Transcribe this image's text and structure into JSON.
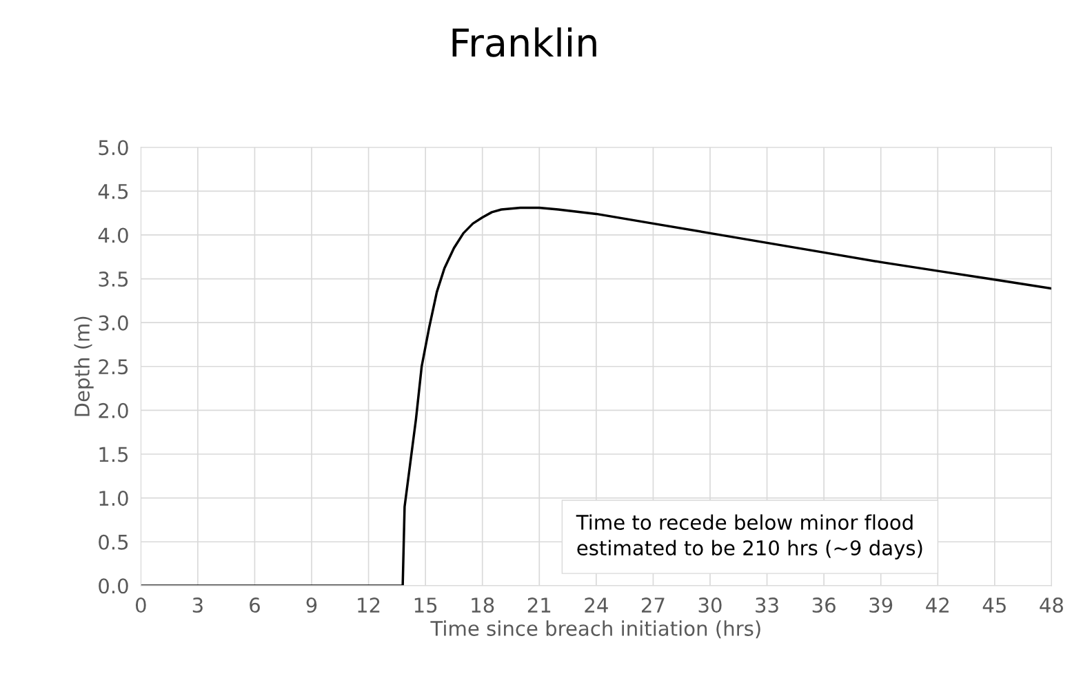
{
  "chart_data": {
    "type": "line",
    "title": "Franklin",
    "xlabel": "Time since breach initiation (hrs)",
    "ylabel": "Depth (m)",
    "x": [
      0,
      13.8,
      13.9,
      14.2,
      14.5,
      14.8,
      15.2,
      15.6,
      16,
      16.5,
      17,
      17.5,
      18,
      18.5,
      19,
      20,
      21,
      22,
      24,
      27,
      30,
      33,
      36,
      39,
      42,
      45,
      48
    ],
    "series": [
      {
        "color": "#000000",
        "values": [
          0,
          0,
          0.9,
          1.4,
          1.9,
          2.5,
          2.95,
          3.35,
          3.62,
          3.85,
          4.02,
          4.13,
          4.2,
          4.26,
          4.29,
          4.31,
          4.31,
          4.29,
          4.24,
          4.13,
          4.02,
          3.91,
          3.8,
          3.69,
          3.59,
          3.49,
          3.39
        ]
      }
    ],
    "xlim": [
      0,
      48
    ],
    "xticks": [
      0,
      3,
      6,
      9,
      12,
      15,
      18,
      21,
      24,
      27,
      30,
      33,
      36,
      39,
      42,
      45,
      48
    ],
    "ylim": [
      0,
      5
    ],
    "yticks": [
      {
        "value": 0,
        "label": "0.0"
      },
      {
        "value": 0.5,
        "label": "0.5"
      },
      {
        "value": 1,
        "label": "1.0"
      },
      {
        "value": 1.5,
        "label": "1.5"
      },
      {
        "value": 2,
        "label": "2.0"
      },
      {
        "value": 2.5,
        "label": "2.5"
      },
      {
        "value": 3,
        "label": "3.0"
      },
      {
        "value": 3.5,
        "label": "3.5"
      },
      {
        "value": 4,
        "label": "4.0"
      },
      {
        "value": 4.5,
        "label": "4.5"
      },
      {
        "value": 5,
        "label": "5.0"
      }
    ],
    "grid": true,
    "marker": "none",
    "line_style": "solid",
    "annotations": [
      "Time to recede below minor flood\nestimated to be 210 hrs (~9 days)"
    ]
  }
}
